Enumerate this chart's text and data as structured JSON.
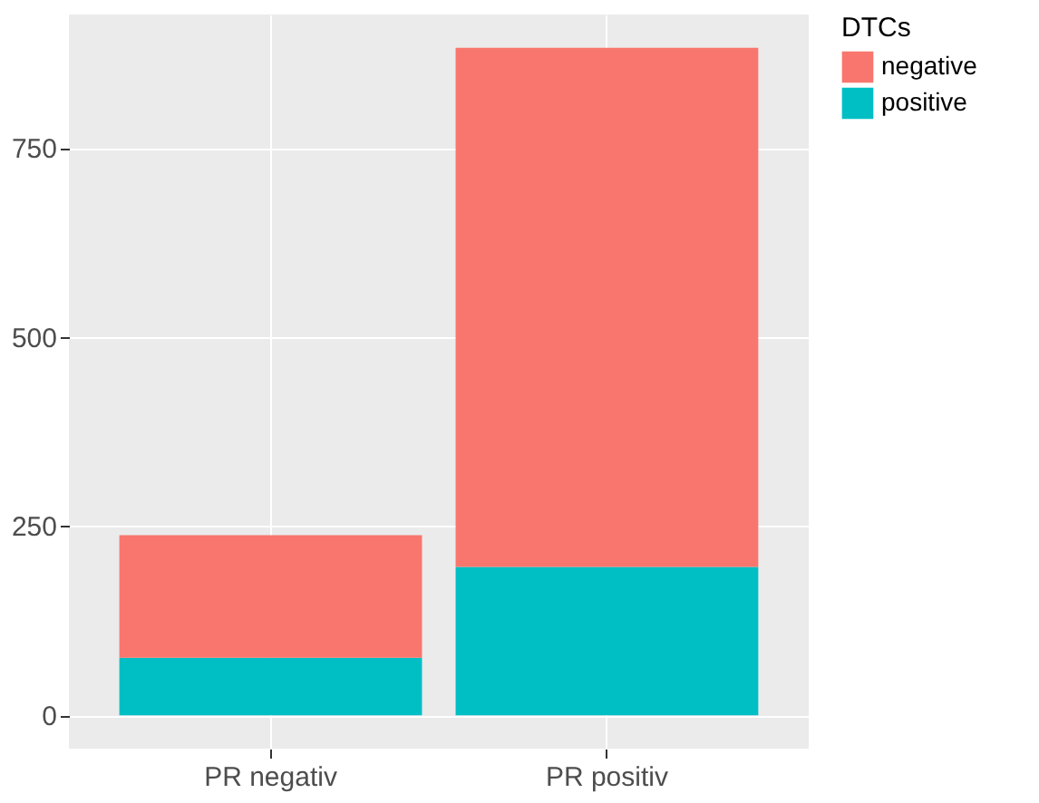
{
  "chart_data": {
    "type": "bar",
    "stacked": true,
    "categories": [
      "PR negativ",
      "PR positiv"
    ],
    "series": [
      {
        "name": "positive",
        "color": "#00bfc4",
        "values": [
          76,
          196
        ]
      },
      {
        "name": "negative",
        "color": "#f8766d",
        "values": [
          162,
          686
        ]
      }
    ],
    "legend_title": "DTCs",
    "legend": "right",
    "ylim": [
      -44.1,
      926.1
    ],
    "yticks": [
      0,
      250,
      500,
      750
    ],
    "grid": true
  }
}
